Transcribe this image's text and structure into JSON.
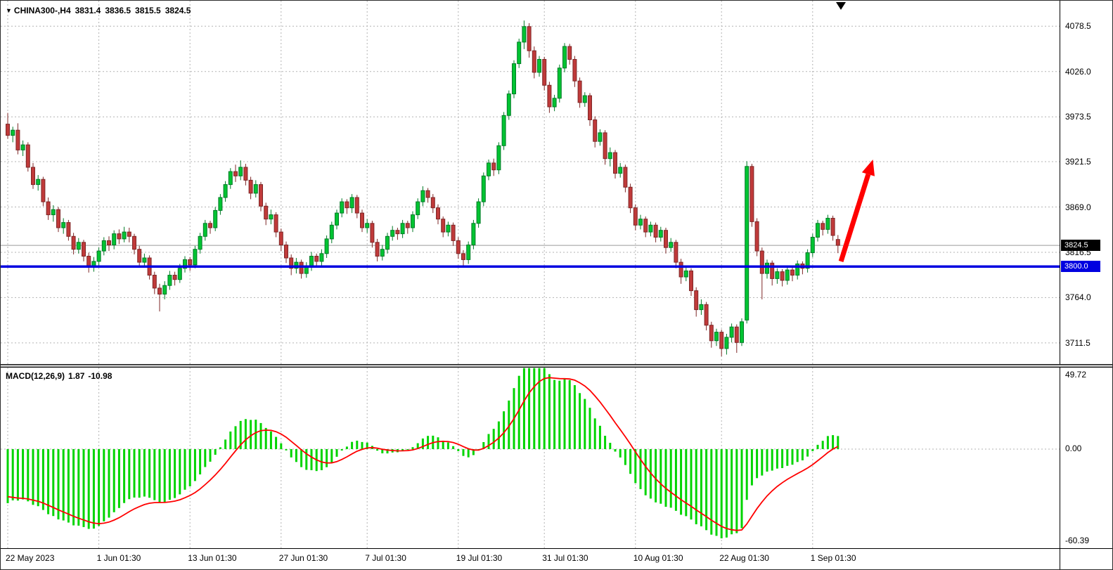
{
  "header": {
    "collapse_icon": "▼",
    "symbol": "CHINA300-,H4",
    "open": "3831.4",
    "high": "3836.5",
    "low": "3815.5",
    "close": "3824.5"
  },
  "macd_header": {
    "name": "MACD(12,26,9)",
    "value_main": "1.87",
    "value_signal": "-10.98"
  },
  "axes": {
    "price_labels": [
      "4078.5",
      "4026.0",
      "3973.5",
      "3921.5",
      "3869.0",
      "3816.5",
      "3764.0",
      "3711.5"
    ],
    "price_badge": "3824.5",
    "hline_badge": "3800.0",
    "macd_labels": {
      "max": "49.72",
      "zero": "0.00",
      "min": "-60.39"
    },
    "time_labels": [
      {
        "bar": 0,
        "text": "22 May 2023"
      },
      {
        "bar": 18,
        "text": "1 Jun 01:30"
      },
      {
        "bar": 36,
        "text": "13 Jun 01:30"
      },
      {
        "bar": 54,
        "text": "27 Jun 01:30"
      },
      {
        "bar": 71,
        "text": "7 Jul 01:30"
      },
      {
        "bar": 89,
        "text": "19 Jul 01:30"
      },
      {
        "bar": 106,
        "text": "31 Jul 01:30"
      },
      {
        "bar": 124,
        "text": "10 Aug 01:30"
      },
      {
        "bar": 141,
        "text": "22 Aug 01:30"
      },
      {
        "bar": 159,
        "text": "1 Sep 01:30"
      }
    ]
  },
  "colors": {
    "bull": "#00c432",
    "bear": "#c03a3a",
    "bull_stroke": "#007a26",
    "bear_stroke": "#7e2727",
    "grid": "#b3b3b3",
    "hline": "#0000e0",
    "badge_price_bg": "#000000",
    "badge_hline_bg": "#0000e0",
    "macd_hist": "#00d400",
    "macd_signal": "#ff0000",
    "arrow": "#ff0000",
    "current_price_line": "#9a9a9a"
  },
  "chart_data": {
    "type": "candlestick",
    "title": "CHINA300-,H4",
    "symbol": "CHINA300-",
    "timeframe": "H4",
    "ohlc_current": {
      "open": 3831.4,
      "high": 3836.5,
      "low": 3815.5,
      "close": 3824.5
    },
    "ylim": [
      3687,
      4108
    ],
    "price_grid_levels": [
      4078.5,
      4026.0,
      3973.5,
      3921.5,
      3869.0,
      3816.5,
      3764.0,
      3711.5
    ],
    "current_price": 3824.5,
    "horizontal_line": 3800.0,
    "x_labels": [
      "22 May 2023",
      "1 Jun 01:30",
      "13 Jun 01:30",
      "27 Jun 01:30",
      "7 Jul 01:30",
      "19 Jul 01:30",
      "31 Jul 01:30",
      "10 Aug 01:30",
      "22 Aug 01:30",
      "1 Sep 01:30"
    ],
    "candles_ohlc": [
      [
        3965,
        3978,
        3948,
        3952
      ],
      [
        3952,
        3962,
        3944,
        3958
      ],
      [
        3958,
        3966,
        3930,
        3935
      ],
      [
        3935,
        3946,
        3928,
        3941
      ],
      [
        3941,
        3944,
        3910,
        3915
      ],
      [
        3915,
        3920,
        3890,
        3895
      ],
      [
        3895,
        3906,
        3888,
        3901
      ],
      [
        3901,
        3904,
        3870,
        3875
      ],
      [
        3875,
        3880,
        3854,
        3860
      ],
      [
        3860,
        3871,
        3852,
        3866
      ],
      [
        3866,
        3869,
        3840,
        3845
      ],
      [
        3845,
        3856,
        3838,
        3851
      ],
      [
        3851,
        3854,
        3830,
        3835
      ],
      [
        3835,
        3839,
        3814,
        3820
      ],
      [
        3820,
        3833,
        3815,
        3828
      ],
      [
        3828,
        3831,
        3806,
        3812
      ],
      [
        3812,
        3816,
        3793,
        3800
      ],
      [
        3800,
        3811,
        3794,
        3806
      ],
      [
        3806,
        3822,
        3800,
        3818
      ],
      [
        3818,
        3834,
        3813,
        3830
      ],
      [
        3830,
        3835,
        3818,
        3825
      ],
      [
        3825,
        3842,
        3820,
        3838
      ],
      [
        3838,
        3843,
        3826,
        3832
      ],
      [
        3832,
        3846,
        3828,
        3840
      ],
      [
        3840,
        3845,
        3828,
        3835
      ],
      [
        3835,
        3838,
        3814,
        3820
      ],
      [
        3820,
        3824,
        3799,
        3805
      ],
      [
        3805,
        3815,
        3800,
        3810
      ],
      [
        3810,
        3813,
        3785,
        3790
      ],
      [
        3790,
        3794,
        3768,
        3775
      ],
      [
        3775,
        3780,
        3748,
        3768
      ],
      [
        3768,
        3783,
        3762,
        3778
      ],
      [
        3778,
        3795,
        3773,
        3790
      ],
      [
        3790,
        3794,
        3778,
        3785
      ],
      [
        3785,
        3803,
        3781,
        3798
      ],
      [
        3798,
        3812,
        3793,
        3808
      ],
      [
        3808,
        3811,
        3795,
        3802
      ],
      [
        3802,
        3824,
        3798,
        3820
      ],
      [
        3820,
        3839,
        3815,
        3835
      ],
      [
        3835,
        3854,
        3830,
        3850
      ],
      [
        3850,
        3853,
        3838,
        3845
      ],
      [
        3845,
        3869,
        3841,
        3865
      ],
      [
        3865,
        3884,
        3860,
        3880
      ],
      [
        3880,
        3899,
        3875,
        3895
      ],
      [
        3895,
        3914,
        3890,
        3910
      ],
      [
        3910,
        3918,
        3898,
        3905
      ],
      [
        3905,
        3923,
        3900,
        3915
      ],
      [
        3915,
        3919,
        3894,
        3900
      ],
      [
        3900,
        3904,
        3878,
        3885
      ],
      [
        3885,
        3900,
        3880,
        3895
      ],
      [
        3895,
        3898,
        3864,
        3870
      ],
      [
        3870,
        3874,
        3848,
        3855
      ],
      [
        3855,
        3866,
        3849,
        3860
      ],
      [
        3860,
        3863,
        3834,
        3840
      ],
      [
        3840,
        3844,
        3818,
        3825
      ],
      [
        3825,
        3829,
        3804,
        3810
      ],
      [
        3810,
        3814,
        3790,
        3798
      ],
      [
        3798,
        3810,
        3792,
        3805
      ],
      [
        3805,
        3808,
        3786,
        3792
      ],
      [
        3792,
        3805,
        3787,
        3800
      ],
      [
        3800,
        3817,
        3795,
        3812
      ],
      [
        3812,
        3815,
        3799,
        3806
      ],
      [
        3806,
        3820,
        3801,
        3815
      ],
      [
        3815,
        3836,
        3810,
        3832
      ],
      [
        3832,
        3852,
        3827,
        3848
      ],
      [
        3848,
        3866,
        3843,
        3862
      ],
      [
        3862,
        3879,
        3857,
        3875
      ],
      [
        3875,
        3878,
        3861,
        3868
      ],
      [
        3868,
        3884,
        3862,
        3880
      ],
      [
        3880,
        3883,
        3856,
        3862
      ],
      [
        3862,
        3866,
        3840,
        3845
      ],
      [
        3845,
        3855,
        3839,
        3850
      ],
      [
        3850,
        3853,
        3822,
        3828
      ],
      [
        3828,
        3832,
        3806,
        3812
      ],
      [
        3812,
        3825,
        3807,
        3820
      ],
      [
        3820,
        3839,
        3815,
        3835
      ],
      [
        3835,
        3847,
        3830,
        3842
      ],
      [
        3842,
        3845,
        3831,
        3838
      ],
      [
        3838,
        3854,
        3833,
        3850
      ],
      [
        3850,
        3853,
        3838,
        3845
      ],
      [
        3845,
        3864,
        3840,
        3860
      ],
      [
        3860,
        3879,
        3855,
        3875
      ],
      [
        3875,
        3893,
        3870,
        3888
      ],
      [
        3888,
        3891,
        3874,
        3880
      ],
      [
        3880,
        3884,
        3862,
        3868
      ],
      [
        3868,
        3872,
        3849,
        3855
      ],
      [
        3855,
        3858,
        3834,
        3840
      ],
      [
        3840,
        3852,
        3835,
        3848
      ],
      [
        3848,
        3851,
        3824,
        3830
      ],
      [
        3830,
        3834,
        3809,
        3815
      ],
      [
        3815,
        3819,
        3800,
        3808
      ],
      [
        3808,
        3829,
        3803,
        3825
      ],
      [
        3825,
        3854,
        3820,
        3850
      ],
      [
        3850,
        3879,
        3845,
        3875
      ],
      [
        3875,
        3909,
        3870,
        3905
      ],
      [
        3905,
        3924,
        3900,
        3920
      ],
      [
        3920,
        3925,
        3905,
        3912
      ],
      [
        3912,
        3944,
        3907,
        3940
      ],
      [
        3940,
        3979,
        3935,
        3975
      ],
      [
        3975,
        4004,
        3970,
        4000
      ],
      [
        4000,
        4039,
        3995,
        4035
      ],
      [
        4035,
        4064,
        4030,
        4060
      ],
      [
        4060,
        4085,
        4052,
        4078
      ],
      [
        4078,
        4082,
        4042,
        4050
      ],
      [
        4050,
        4055,
        4018,
        4025
      ],
      [
        4025,
        4044,
        4020,
        4040
      ],
      [
        4040,
        4043,
        4004,
        4010
      ],
      [
        4010,
        4014,
        3978,
        3985
      ],
      [
        3985,
        3999,
        3980,
        3995
      ],
      [
        3995,
        4034,
        3990,
        4030
      ],
      [
        4030,
        4059,
        4025,
        4055
      ],
      [
        4055,
        4058,
        4034,
        4040
      ],
      [
        4040,
        4044,
        4008,
        4015
      ],
      [
        4015,
        4019,
        3984,
        3990
      ],
      [
        3990,
        4002,
        3985,
        3998
      ],
      [
        3998,
        4001,
        3963,
        3970
      ],
      [
        3970,
        3974,
        3938,
        3945
      ],
      [
        3945,
        3959,
        3940,
        3955
      ],
      [
        3955,
        3958,
        3918,
        3925
      ],
      [
        3925,
        3938,
        3916,
        3932
      ],
      [
        3932,
        3935,
        3902,
        3908
      ],
      [
        3908,
        3920,
        3903,
        3915
      ],
      [
        3915,
        3918,
        3886,
        3892
      ],
      [
        3892,
        3896,
        3862,
        3868
      ],
      [
        3868,
        3872,
        3842,
        3848
      ],
      [
        3848,
        3860,
        3843,
        3855
      ],
      [
        3855,
        3858,
        3834,
        3840
      ],
      [
        3840,
        3852,
        3835,
        3848
      ],
      [
        3848,
        3851,
        3828,
        3834
      ],
      [
        3834,
        3846,
        3829,
        3842
      ],
      [
        3842,
        3845,
        3815,
        3822
      ],
      [
        3822,
        3833,
        3817,
        3828
      ],
      [
        3828,
        3831,
        3798,
        3805
      ],
      [
        3805,
        3809,
        3780,
        3788
      ],
      [
        3788,
        3800,
        3783,
        3795
      ],
      [
        3795,
        3798,
        3766,
        3772
      ],
      [
        3772,
        3776,
        3742,
        3750
      ],
      [
        3750,
        3762,
        3744,
        3756
      ],
      [
        3756,
        3759,
        3726,
        3732
      ],
      [
        3732,
        3736,
        3706,
        3714
      ],
      [
        3714,
        3728,
        3708,
        3724
      ],
      [
        3724,
        3727,
        3696,
        3705
      ],
      [
        3705,
        3722,
        3698,
        3718
      ],
      [
        3718,
        3734,
        3712,
        3730
      ],
      [
        3730,
        3733,
        3700,
        3712
      ],
      [
        3712,
        3740,
        3708,
        3736
      ],
      [
        3738,
        3922,
        3734,
        3916
      ],
      [
        3916,
        3919,
        3846,
        3852
      ],
      [
        3852,
        3856,
        3812,
        3818
      ],
      [
        3818,
        3822,
        3762,
        3792
      ],
      [
        3792,
        3808,
        3786,
        3804
      ],
      [
        3804,
        3807,
        3778,
        3786
      ],
      [
        3786,
        3798,
        3780,
        3794
      ],
      [
        3794,
        3797,
        3777,
        3784
      ],
      [
        3784,
        3800,
        3779,
        3796
      ],
      [
        3796,
        3799,
        3783,
        3790
      ],
      [
        3790,
        3807,
        3785,
        3803
      ],
      [
        3803,
        3806,
        3791,
        3798
      ],
      [
        3798,
        3820,
        3793,
        3816
      ],
      [
        3816,
        3838,
        3811,
        3834
      ],
      [
        3834,
        3854,
        3829,
        3850
      ],
      [
        3850,
        3853,
        3836,
        3843
      ],
      [
        3843,
        3860,
        3838,
        3856
      ],
      [
        3856,
        3859,
        3830,
        3836
      ],
      [
        3831.4,
        3836.5,
        3815.5,
        3824.5
      ]
    ],
    "indicator": {
      "type": "macd",
      "name": "MACD",
      "fast": 12,
      "slow": 26,
      "signal": 9,
      "current_macd": 1.87,
      "current_signal": -10.98,
      "range": [
        -60.39,
        49.72
      ],
      "histogram_color": "green",
      "signal_color": "red"
    },
    "annotations": {
      "trend_arrow": {
        "direction": "up",
        "color": "#ff0000",
        "from": {
          "bar": 164.6,
          "price": 3806
        },
        "to": {
          "bar": 170.9,
          "price": 3924
        }
      }
    }
  }
}
